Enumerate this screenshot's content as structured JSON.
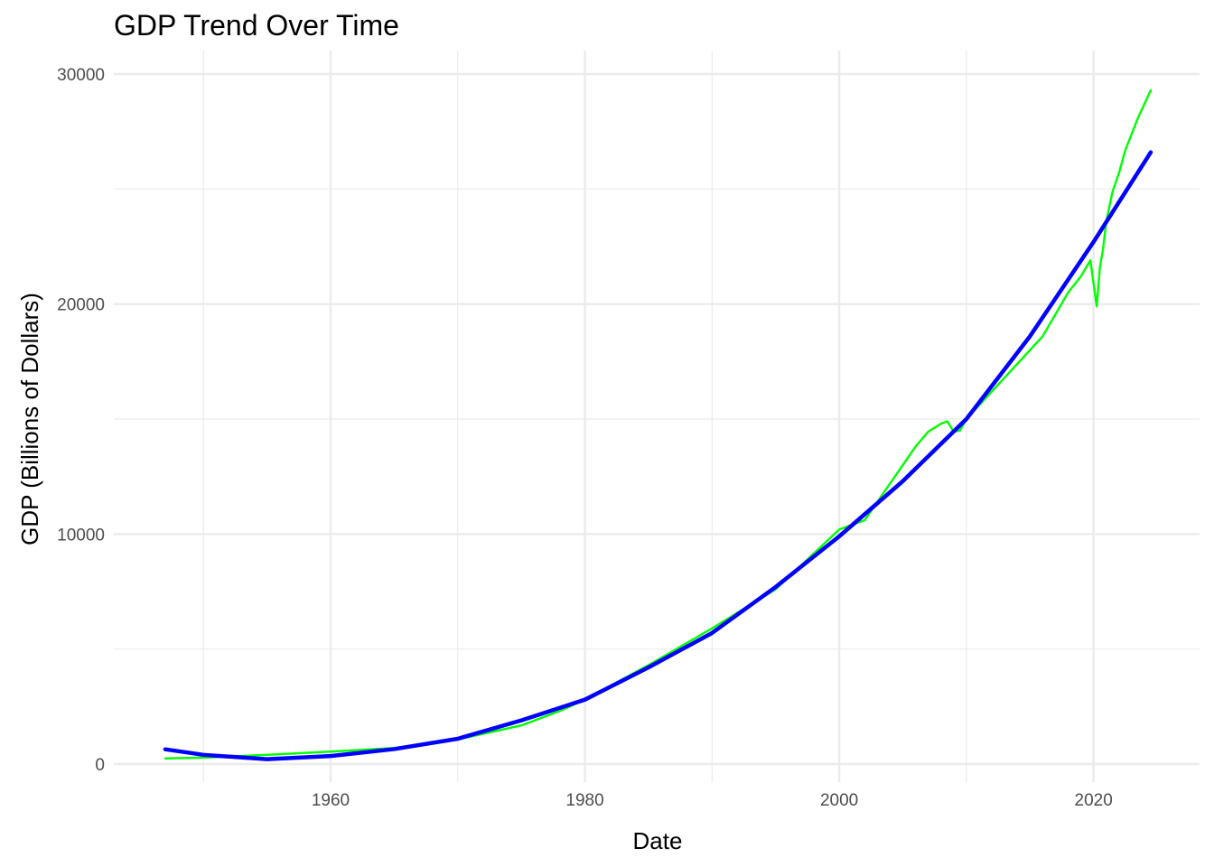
{
  "chart_data": {
    "type": "line",
    "title": "GDP Trend Over Time",
    "xlabel": "Date",
    "ylabel": "GDP (Billions of Dollars)",
    "xlim": [
      1947,
      2024.5
    ],
    "ylim": [
      0,
      30000
    ],
    "x_ticks": [
      1960,
      1980,
      2000,
      2020
    ],
    "y_ticks": [
      0,
      10000,
      20000,
      30000
    ],
    "grid": true,
    "legend": "none",
    "colors": {
      "observed": "#00ff00",
      "trend": "#0000ff",
      "grid": "#ebebeb",
      "background": "#ffffff"
    },
    "series": [
      {
        "x": [
          1947,
          1950,
          1955,
          1960,
          1965,
          1970,
          1975,
          1978,
          1980,
          1985,
          1990,
          1995,
          2000,
          2002,
          2004,
          2006,
          2007,
          2008,
          2008.5,
          2009,
          2009.5,
          2010,
          2012,
          2014,
          2016,
          2018,
          2019,
          2019.75,
          2020.25,
          2020.5,
          2020.75,
          2021,
          2021.5,
          2022,
          2022.5,
          2023,
          2023.5,
          2024,
          2024.5
        ],
        "values": [
          243,
          280,
          400,
          540,
          700,
          1070,
          1680,
          2300,
          2800,
          4300,
          5900,
          7600,
          10200,
          10600,
          12200,
          13800,
          14450,
          14800,
          14900,
          14450,
          14500,
          15000,
          16200,
          17400,
          18600,
          20500,
          21200,
          21900,
          19900,
          21600,
          22400,
          23600,
          24900,
          25700,
          26700,
          27400,
          28100,
          28700,
          29300
        ]
      },
      {
        "x": [
          1947,
          1950,
          1955,
          1960,
          1965,
          1970,
          1975,
          1980,
          1985,
          1990,
          1995,
          2000,
          2005,
          2010,
          2015,
          2020,
          2024.5
        ],
        "values": [
          640,
          400,
          210,
          350,
          650,
          1100,
          1900,
          2800,
          4200,
          5700,
          7700,
          9900,
          12300,
          15000,
          18600,
          22700,
          26600
        ]
      }
    ]
  }
}
